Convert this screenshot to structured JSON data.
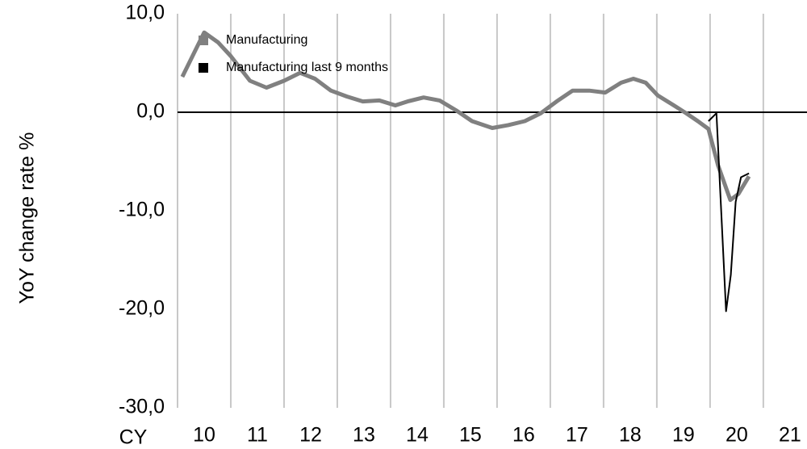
{
  "chart_data": {
    "type": "line",
    "y_label": "YoY change rate %",
    "x_label": "CY",
    "xlim": [
      10,
      21.82
    ],
    "xticks": [
      {
        "value": 10.5,
        "label": "10"
      },
      {
        "value": 11.5,
        "label": "11"
      },
      {
        "value": 12.5,
        "label": "12"
      },
      {
        "value": 13.5,
        "label": "13"
      },
      {
        "value": 14.5,
        "label": "14"
      },
      {
        "value": 15.5,
        "label": "15"
      },
      {
        "value": 16.5,
        "label": "16"
      },
      {
        "value": 17.5,
        "label": "17"
      },
      {
        "value": 18.5,
        "label": "18"
      },
      {
        "value": 19.5,
        "label": "19"
      },
      {
        "value": 20.5,
        "label": "20"
      },
      {
        "value": 21.5,
        "label": "21"
      }
    ],
    "ylim": [
      -30,
      10
    ],
    "yticks": [
      {
        "value": -30,
        "label": "-30,0"
      },
      {
        "value": -20,
        "label": "-20,0"
      },
      {
        "value": -10,
        "label": "-10,0"
      },
      {
        "value": 0,
        "label": "0,0"
      },
      {
        "value": 10,
        "label": "10,0"
      }
    ],
    "grid": true,
    "legend": "top-left",
    "series": [
      {
        "name": "Manufacturing",
        "color": "#808080",
        "x": [
          10.09,
          10.5,
          10.76,
          11.0,
          11.36,
          11.67,
          12.0,
          12.3,
          12.58,
          12.88,
          13.18,
          13.48,
          13.79,
          14.09,
          14.32,
          14.62,
          14.92,
          15.23,
          15.53,
          15.91,
          16.21,
          16.52,
          16.82,
          17.12,
          17.42,
          17.73,
          18.03,
          18.33,
          18.56,
          18.79,
          19.02,
          19.32,
          19.55,
          19.77,
          19.97,
          20.15,
          20.38,
          20.53,
          20.73
        ],
        "values": [
          3.6,
          8.1,
          7.1,
          5.7,
          3.2,
          2.5,
          3.2,
          4.0,
          3.4,
          2.2,
          1.6,
          1.1,
          1.2,
          0.7,
          1.1,
          1.5,
          1.2,
          0.2,
          -0.9,
          -1.6,
          -1.3,
          -0.9,
          -0.1,
          1.1,
          2.2,
          2.2,
          2.0,
          3.0,
          3.4,
          3.0,
          1.7,
          0.7,
          -0.1,
          -0.9,
          -1.7,
          -5.4,
          -8.9,
          -8.3,
          -6.5
        ]
      },
      {
        "name": "Manufacturing last 9 months",
        "color": "#000000",
        "x": [
          19.97,
          20.12,
          20.3,
          20.39,
          20.48,
          20.58,
          20.73
        ],
        "values": [
          -0.9,
          -0.1,
          -20.2,
          -16.5,
          -9.1,
          -6.6,
          -6.2
        ]
      }
    ]
  }
}
